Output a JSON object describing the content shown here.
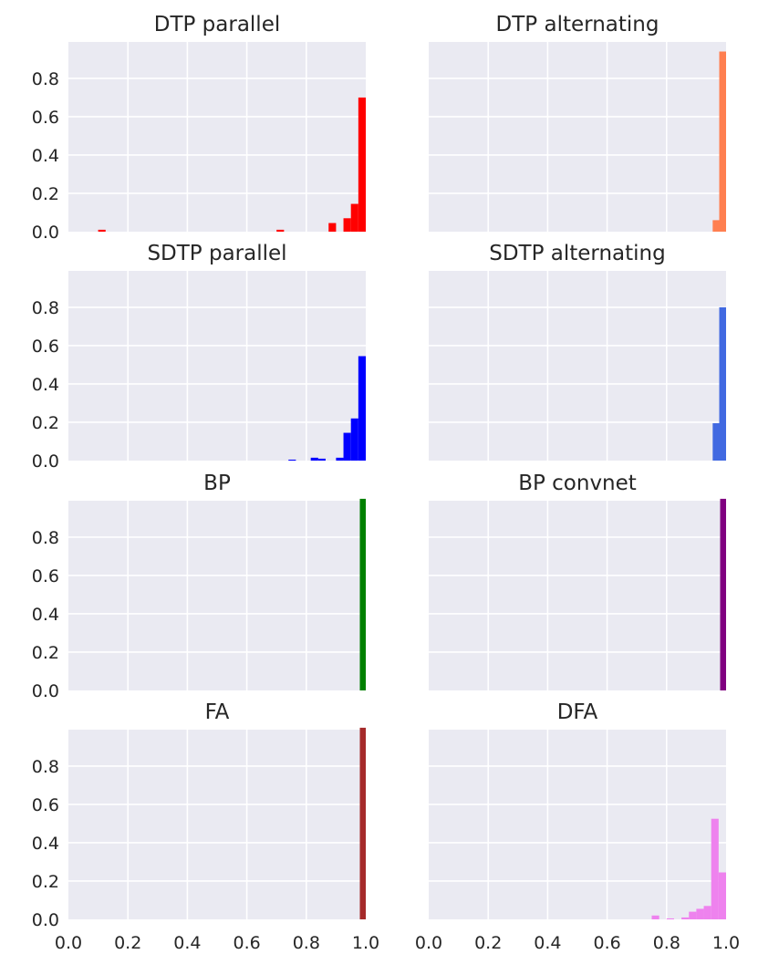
{
  "chart_data": [
    {
      "type": "bar",
      "title": "DTP parallel",
      "color": "#ff0000",
      "xlim": [
        0.0,
        1.0
      ],
      "ylim": [
        0.0,
        0.99
      ],
      "xticks": [
        "0.0",
        "0.2",
        "0.4",
        "0.6",
        "0.8",
        "1.0"
      ],
      "yticks": [
        "0.0",
        "0.2",
        "0.4",
        "0.6",
        "0.8"
      ],
      "bins": [
        [
          0.1,
          0.125,
          0.01
        ],
        [
          0.7,
          0.725,
          0.01
        ],
        [
          0.875,
          0.9,
          0.045
        ],
        [
          0.925,
          0.95,
          0.07
        ],
        [
          0.95,
          0.975,
          0.145
        ],
        [
          0.975,
          1.0,
          0.7
        ]
      ]
    },
    {
      "type": "bar",
      "title": "DTP alternating",
      "color": "#ff7f50",
      "xlim": [
        0.0,
        1.0
      ],
      "ylim": [
        0.0,
        0.99
      ],
      "xticks": [
        "0.0",
        "0.2",
        "0.4",
        "0.6",
        "0.8",
        "1.0"
      ],
      "yticks": [
        "0.0",
        "0.2",
        "0.4",
        "0.6",
        "0.8"
      ],
      "bins": [
        [
          0.955,
          0.977,
          0.06
        ],
        [
          0.977,
          1.0,
          0.94
        ]
      ]
    },
    {
      "type": "bar",
      "title": "SDTP parallel",
      "color": "#0000ff",
      "xlim": [
        0.0,
        1.0
      ],
      "ylim": [
        0.0,
        0.99
      ],
      "xticks": [
        "0.0",
        "0.2",
        "0.4",
        "0.6",
        "0.8",
        "1.0"
      ],
      "yticks": [
        "0.0",
        "0.2",
        "0.4",
        "0.6",
        "0.8"
      ],
      "bins": [
        [
          0.74,
          0.765,
          0.005
        ],
        [
          0.815,
          0.84,
          0.015
        ],
        [
          0.84,
          0.865,
          0.01
        ],
        [
          0.9,
          0.925,
          0.015
        ],
        [
          0.925,
          0.95,
          0.145
        ],
        [
          0.95,
          0.975,
          0.22
        ],
        [
          0.975,
          1.0,
          0.545
        ]
      ]
    },
    {
      "type": "bar",
      "title": "SDTP alternating",
      "color": "#4169e1",
      "xlim": [
        0.0,
        1.0
      ],
      "ylim": [
        0.0,
        0.99
      ],
      "xticks": [
        "0.0",
        "0.2",
        "0.4",
        "0.6",
        "0.8",
        "1.0"
      ],
      "yticks": [
        "0.0",
        "0.2",
        "0.4",
        "0.6",
        "0.8"
      ],
      "bins": [
        [
          0.955,
          0.977,
          0.195
        ],
        [
          0.977,
          1.0,
          0.8
        ]
      ]
    },
    {
      "type": "bar",
      "title": "BP",
      "color": "#008000",
      "xlim": [
        0.0,
        1.0
      ],
      "ylim": [
        0.0,
        0.99
      ],
      "xticks": [
        "0.0",
        "0.2",
        "0.4",
        "0.6",
        "0.8",
        "1.0"
      ],
      "yticks": [
        "0.0",
        "0.2",
        "0.4",
        "0.6",
        "0.8"
      ],
      "bins": [
        [
          0.98,
          1.0,
          1.0
        ]
      ]
    },
    {
      "type": "bar",
      "title": "BP convnet",
      "color": "#800080",
      "xlim": [
        0.0,
        1.0
      ],
      "ylim": [
        0.0,
        0.99
      ],
      "xticks": [
        "0.0",
        "0.2",
        "0.4",
        "0.6",
        "0.8",
        "1.0"
      ],
      "yticks": [
        "0.0",
        "0.2",
        "0.4",
        "0.6",
        "0.8"
      ],
      "bins": [
        [
          0.98,
          1.0,
          1.0
        ]
      ]
    },
    {
      "type": "bar",
      "title": "FA",
      "color": "#a52a2a",
      "xlim": [
        0.0,
        1.0
      ],
      "ylim": [
        0.0,
        0.99
      ],
      "xticks": [
        "0.0",
        "0.2",
        "0.4",
        "0.6",
        "0.8",
        "1.0"
      ],
      "yticks": [
        "0.0",
        "0.2",
        "0.4",
        "0.6",
        "0.8"
      ],
      "bins": [
        [
          0.98,
          1.0,
          1.0
        ]
      ]
    },
    {
      "type": "bar",
      "title": "DFA",
      "color": "#ee82ee",
      "xlim": [
        0.0,
        1.0
      ],
      "ylim": [
        0.0,
        0.99
      ],
      "xticks": [
        "0.0",
        "0.2",
        "0.4",
        "0.6",
        "0.8",
        "1.0"
      ],
      "yticks": [
        "0.0",
        "0.2",
        "0.4",
        "0.6",
        "0.8"
      ],
      "bins": [
        [
          0.75,
          0.775,
          0.02
        ],
        [
          0.8,
          0.825,
          0.005
        ],
        [
          0.85,
          0.875,
          0.01
        ],
        [
          0.875,
          0.9,
          0.04
        ],
        [
          0.9,
          0.925,
          0.055
        ],
        [
          0.925,
          0.95,
          0.07
        ],
        [
          0.95,
          0.975,
          0.525
        ],
        [
          0.975,
          1.0,
          0.245
        ]
      ]
    }
  ]
}
